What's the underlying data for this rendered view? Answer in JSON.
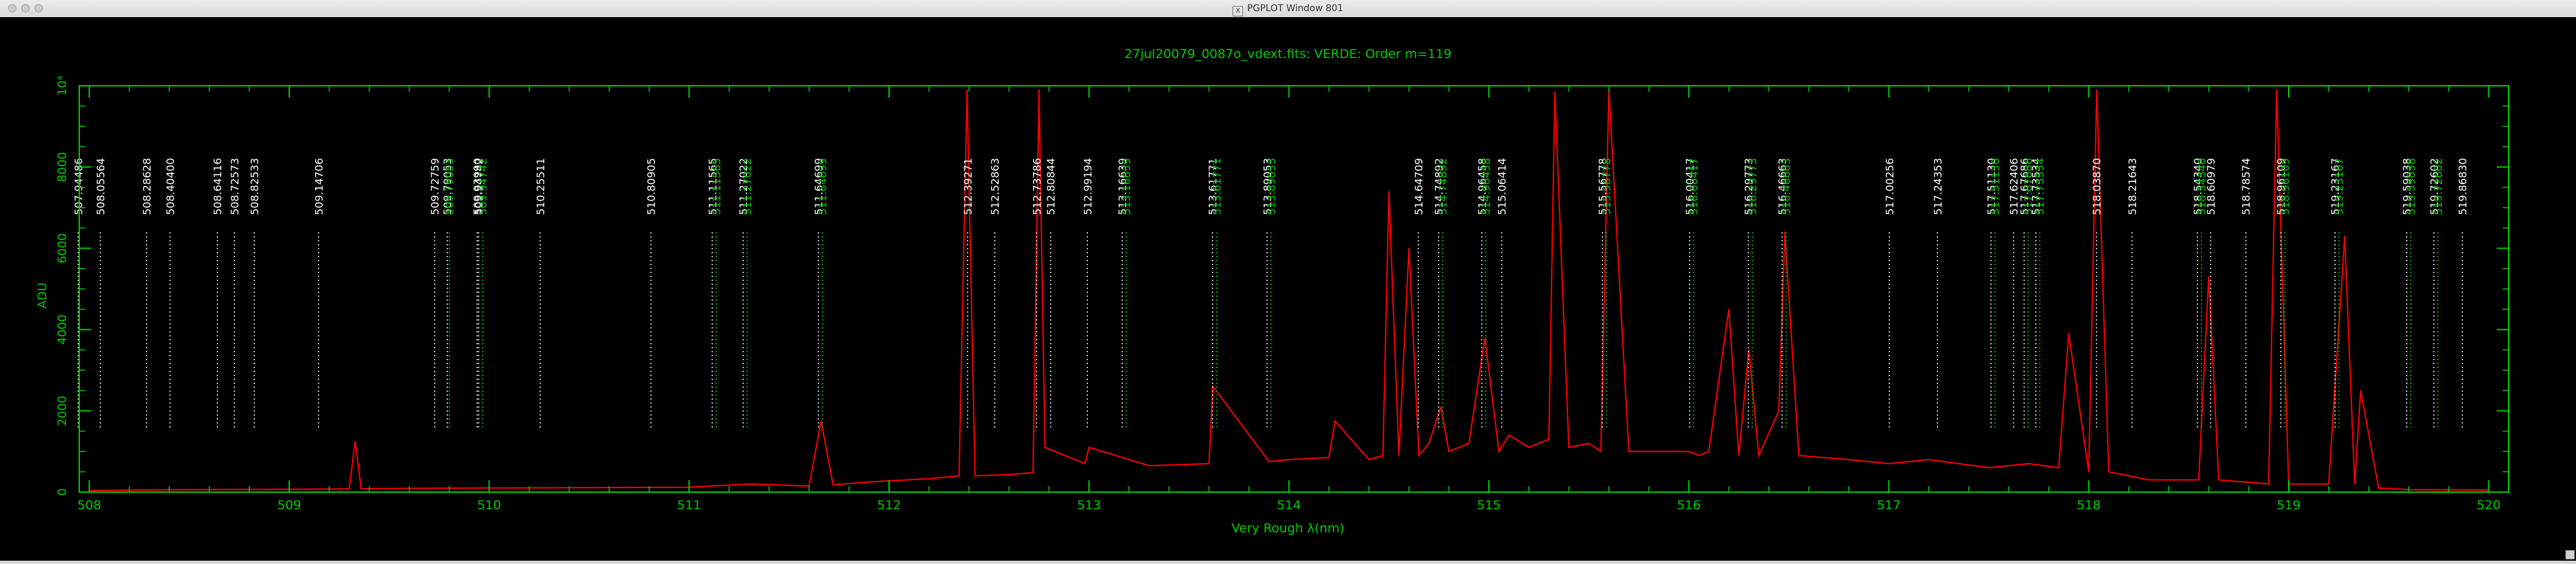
{
  "window": {
    "title": "PGPLOT Window 801"
  },
  "chart_data": {
    "type": "line",
    "title": "27jul20079_0087o_vdext.fits: VERDE: Order m=119",
    "xlabel": "Very Rough λ(nm)",
    "ylabel": "ADU",
    "xlim": [
      507.95,
      520.1
    ],
    "ylim": [
      0,
      10000
    ],
    "xticks": [
      508,
      509,
      510,
      511,
      512,
      513,
      514,
      515,
      516,
      517,
      518,
      519,
      520
    ],
    "yticks": [
      0,
      2000,
      4000,
      6000,
      8000,
      10000
    ],
    "ytick_labels": [
      "0",
      "2000",
      "4000",
      "6000",
      "8000",
      "10⁴"
    ],
    "colors": {
      "frame": "#00cc00",
      "spectrum": "#ff0000",
      "white_line": "#ffffff",
      "green_line": "#00cc00"
    },
    "grid": false,
    "legend": "none",
    "series": [
      {
        "x": [
          508.0,
          508.5,
          509.0,
          509.3,
          509.33,
          509.36,
          509.5,
          510.0,
          510.5,
          511.0,
          511.3,
          511.6,
          511.66,
          511.72,
          511.9,
          512.2,
          512.35,
          512.39,
          512.43,
          512.6,
          512.72,
          512.75,
          512.78,
          512.98,
          513.0,
          513.3,
          513.6,
          513.62,
          513.9,
          514.0,
          514.2,
          514.23,
          514.4,
          514.47,
          514.5,
          514.55,
          514.6,
          514.65,
          514.7,
          514.76,
          514.8,
          514.9,
          514.98,
          515.05,
          515.1,
          515.2,
          515.25,
          515.3,
          515.33,
          515.4,
          515.5,
          515.56,
          515.6,
          515.7,
          515.9,
          516.0,
          516.05,
          516.1,
          516.2,
          516.25,
          516.3,
          516.35,
          516.45,
          516.48,
          516.55,
          516.8,
          517.0,
          517.2,
          517.5,
          517.7,
          517.85,
          517.9,
          518.0,
          518.04,
          518.1,
          518.3,
          518.55,
          518.6,
          518.65,
          518.9,
          518.94,
          519.0,
          519.2,
          519.28,
          519.33,
          519.36,
          519.45,
          519.6,
          520.0
        ],
        "values": [
          40,
          60,
          70,
          80,
          1250,
          80,
          90,
          100,
          110,
          120,
          200,
          150,
          1750,
          180,
          250,
          330,
          400,
          9900,
          400,
          430,
          480,
          9900,
          1100,
          700,
          1100,
          650,
          700,
          2600,
          750,
          800,
          850,
          1750,
          800,
          900,
          7400,
          900,
          6000,
          900,
          1200,
          2100,
          1000,
          1200,
          3800,
          1000,
          1400,
          1100,
          1200,
          1300,
          9850,
          1100,
          1200,
          1000,
          9900,
          1000,
          1000,
          1000,
          900,
          1000,
          4500,
          900,
          3500,
          900,
          2000,
          6400,
          900,
          800,
          700,
          800,
          600,
          700,
          600,
          3900,
          500,
          9900,
          500,
          300,
          300,
          5300,
          300,
          200,
          9900,
          200,
          200,
          6300,
          200,
          2500,
          100,
          60,
          50
        ]
      }
    ],
    "line_markers": [
      {
        "label": "507.94486",
        "x": 507.94486,
        "color": "white"
      },
      {
        "label": "508.05564",
        "x": 508.05564,
        "color": "white"
      },
      {
        "label": "508.28628",
        "x": 508.28628,
        "color": "white"
      },
      {
        "label": "508.40400",
        "x": 508.404,
        "color": "white"
      },
      {
        "label": "508.64116",
        "x": 508.64116,
        "color": "white"
      },
      {
        "label": "508.72573",
        "x": 508.72573,
        "color": "white"
      },
      {
        "label": "508.82533",
        "x": 508.82533,
        "color": "white"
      },
      {
        "label": "509.14706",
        "x": 509.14706,
        "color": "white"
      },
      {
        "label": "509.72759",
        "x": 509.72759,
        "color": "white"
      },
      {
        "label": "509.79053",
        "x": 509.79053,
        "color": "white"
      },
      {
        "label": "509.79053",
        "x": 509.80053,
        "color": "green"
      },
      {
        "label": "509.93990",
        "x": 509.9399,
        "color": "white"
      },
      {
        "label": "509.94742",
        "x": 509.94742,
        "color": "white"
      },
      {
        "label": "509.94742",
        "x": 509.96742,
        "color": "green"
      },
      {
        "label": "510.25511",
        "x": 510.25511,
        "color": "white"
      },
      {
        "label": "510.80905",
        "x": 510.80905,
        "color": "white"
      },
      {
        "label": "511.11565",
        "x": 511.11565,
        "color": "white"
      },
      {
        "label": "511.11565",
        "x": 511.13565,
        "color": "green"
      },
      {
        "label": "511.27022",
        "x": 511.27022,
        "color": "white"
      },
      {
        "label": "511.27022",
        "x": 511.29022,
        "color": "green"
      },
      {
        "label": "511.64699",
        "x": 511.64699,
        "color": "white"
      },
      {
        "label": "511.64699",
        "x": 511.66699,
        "color": "green"
      },
      {
        "label": "512.39271",
        "x": 512.39271,
        "color": "white"
      },
      {
        "label": "512.52863",
        "x": 512.52863,
        "color": "white"
      },
      {
        "label": "512.73786",
        "x": 512.73786,
        "color": "white"
      },
      {
        "label": "512.80844",
        "x": 512.80844,
        "color": "white"
      },
      {
        "label": "512.99194",
        "x": 512.99194,
        "color": "white"
      },
      {
        "label": "513.16639",
        "x": 513.16639,
        "color": "white"
      },
      {
        "label": "513.16639",
        "x": 513.18639,
        "color": "green"
      },
      {
        "label": "513.61771",
        "x": 513.61771,
        "color": "white"
      },
      {
        "label": "513.61771",
        "x": 513.63771,
        "color": "green"
      },
      {
        "label": "513.89053",
        "x": 513.89053,
        "color": "white"
      },
      {
        "label": "513.89053",
        "x": 513.91053,
        "color": "green"
      },
      {
        "label": "514.64709",
        "x": 514.64709,
        "color": "white"
      },
      {
        "label": "514.74892",
        "x": 514.74892,
        "color": "white"
      },
      {
        "label": "514.74892",
        "x": 514.76892,
        "color": "green"
      },
      {
        "label": "514.96458",
        "x": 514.96458,
        "color": "white"
      },
      {
        "label": "514.96458",
        "x": 514.98458,
        "color": "green"
      },
      {
        "label": "515.06414",
        "x": 515.06414,
        "color": "white"
      },
      {
        "label": "515.56778",
        "x": 515.56778,
        "color": "white"
      },
      {
        "label": "515.56778",
        "x": 515.58778,
        "color": "green"
      },
      {
        "label": "516.00417",
        "x": 516.00417,
        "color": "white"
      },
      {
        "label": "516.00417",
        "x": 516.02417,
        "color": "green"
      },
      {
        "label": "516.29773",
        "x": 516.29773,
        "color": "white"
      },
      {
        "label": "516.29773",
        "x": 516.31773,
        "color": "green"
      },
      {
        "label": "516.46663",
        "x": 516.46663,
        "color": "white"
      },
      {
        "label": "516.46663",
        "x": 516.48663,
        "color": "green"
      },
      {
        "label": "517.00256",
        "x": 517.00256,
        "color": "white"
      },
      {
        "label": "517.24353",
        "x": 517.24353,
        "color": "white"
      },
      {
        "label": "517.51130",
        "x": 517.5113,
        "color": "white"
      },
      {
        "label": "517.51130",
        "x": 517.5313,
        "color": "green"
      },
      {
        "label": "517.62406",
        "x": 517.62406,
        "color": "white"
      },
      {
        "label": "517.67686",
        "x": 517.67686,
        "color": "white"
      },
      {
        "label": "517.67686",
        "x": 517.69686,
        "color": "green"
      },
      {
        "label": "517.73534",
        "x": 517.73534,
        "color": "white"
      },
      {
        "label": "517.73534",
        "x": 517.75534,
        "color": "green"
      },
      {
        "label": "518.03870",
        "x": 518.0387,
        "color": "white"
      },
      {
        "label": "518.21643",
        "x": 518.21643,
        "color": "white"
      },
      {
        "label": "518.54340",
        "x": 518.5434,
        "color": "white"
      },
      {
        "label": "518.54340",
        "x": 518.5634,
        "color": "green"
      },
      {
        "label": "518.60979",
        "x": 518.60979,
        "color": "white"
      },
      {
        "label": "518.78574",
        "x": 518.78574,
        "color": "white"
      },
      {
        "label": "518.96109",
        "x": 518.96109,
        "color": "white"
      },
      {
        "label": "518.96109",
        "x": 518.98109,
        "color": "green"
      },
      {
        "label": "519.23167",
        "x": 519.23167,
        "color": "white"
      },
      {
        "label": "519.23167",
        "x": 519.25167,
        "color": "green"
      },
      {
        "label": "519.59038",
        "x": 519.59038,
        "color": "white"
      },
      {
        "label": "519.59038",
        "x": 519.61038,
        "color": "green"
      },
      {
        "label": "519.72602",
        "x": 519.72602,
        "color": "white"
      },
      {
        "label": "519.72602",
        "x": 519.74602,
        "color": "green"
      },
      {
        "label": "519.86830",
        "x": 519.8683,
        "color": "white"
      }
    ]
  }
}
